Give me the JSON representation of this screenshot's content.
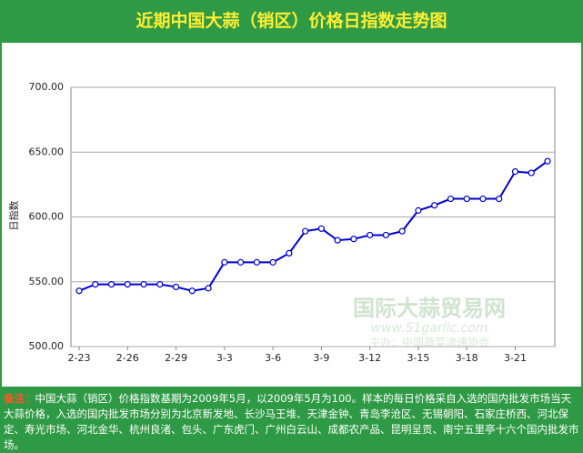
{
  "chart_data": {
    "type": "line",
    "title": "近期中国大蒜（销区）价格日指数走势图",
    "y_label": "日指数",
    "categories": [
      "2-23",
      null,
      null,
      "2-26",
      null,
      null,
      "2-29",
      null,
      null,
      "3-3",
      null,
      null,
      "3-6",
      null,
      null,
      "3-9",
      null,
      null,
      "3-12",
      null,
      null,
      "3-15",
      null,
      null,
      "3-18",
      null,
      null,
      "3-21",
      null,
      null
    ],
    "series": [
      {
        "name": "日指数",
        "color": "#0000cc",
        "values": [
          543,
          548,
          548,
          548,
          548,
          548,
          546,
          543,
          545,
          565,
          565,
          565,
          565,
          572,
          589,
          591,
          582,
          583,
          586,
          586,
          589,
          605,
          609,
          614,
          614,
          614,
          614,
          635,
          634,
          643
        ]
      }
    ],
    "ylim": [
      500,
      700
    ],
    "yticks": [
      {
        "value": 500,
        "label": "500.00"
      },
      {
        "value": 550,
        "label": "550.00"
      },
      {
        "value": 600,
        "label": "600.00"
      },
      {
        "value": 650,
        "label": "650.00"
      },
      {
        "value": 700,
        "label": "700.00"
      }
    ],
    "grid": true,
    "watermark": [
      "国际大蒜贸易网",
      "www.51garlic.com",
      "主办：中国蔬菜流通协会"
    ],
    "note_label": "备注：",
    "note": "中国大蒜（销区）价格指数基期为2009年5月，以2009年5月为100。样本的每日价格采自入选的国内批发市场当天大蒜价格，入选的国内批发市场分别为北京新发地、长沙马王堆、天津金钟、青岛李沧区、无锡朝阳、石家庄桥西、河北保定、寿光市场、河北金华、杭州良渚、包头、广东虎门、广州白云山、成都农产品、昆明呈贡、南宁五里亭十六个国内批发市场。"
  }
}
